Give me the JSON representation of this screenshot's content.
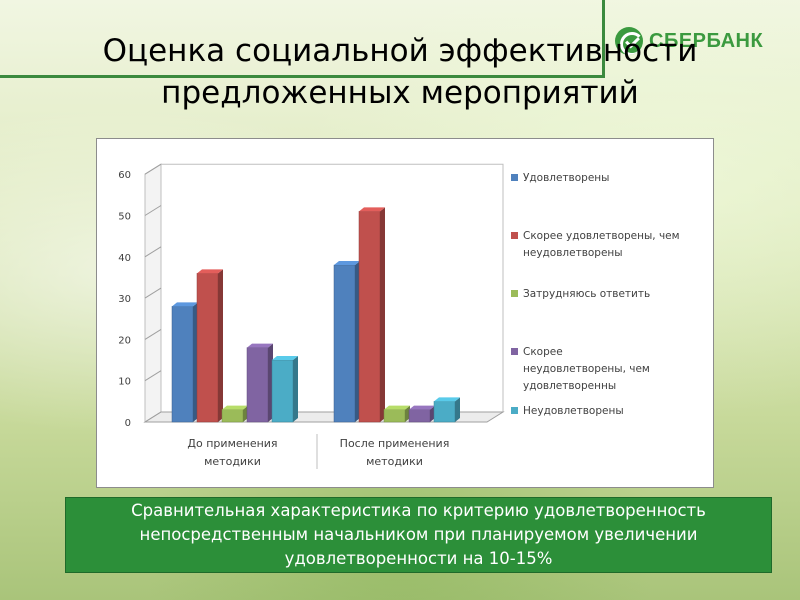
{
  "slide": {
    "title_line1": "Оценка социальной эффективности",
    "title_line2": "предложенных мероприятий",
    "logo_text": "СБЕРБАНК",
    "caption": "Сравнительная характеристика по критерию удовлетворенность непосредственным начальником при планируемом увеличении удовлетворенности на 10-15%"
  },
  "colors": {
    "accent_green": "#3b9a3f",
    "caption_bg": "#2c8f39"
  },
  "chart_data": {
    "type": "bar",
    "three_d": true,
    "categories": [
      "До применения методики",
      "После применения методики"
    ],
    "category_lines": [
      [
        "До применения",
        "методики"
      ],
      [
        "После применения",
        "методики"
      ]
    ],
    "series": [
      {
        "name": "Удовлетворены",
        "values": [
          28,
          38
        ],
        "color": "#4f81bd"
      },
      {
        "name": "Скорее удовлетворены, чем неудовлетворены",
        "values": [
          36,
          51
        ],
        "color": "#c0504d"
      },
      {
        "name": "Затрудняюсь ответить",
        "values": [
          3,
          3
        ],
        "color": "#9bbb59"
      },
      {
        "name": "Скорее неудовлетворены, чем удовлетворенны",
        "values": [
          18,
          3
        ],
        "color": "#8064a2"
      },
      {
        "name": "Неудовлетворены",
        "values": [
          15,
          5
        ],
        "color": "#4bacc6"
      }
    ],
    "legend_lines": [
      [
        "Удовлетворены"
      ],
      [
        "Скорее удовлетворены, чем",
        "неудовлетворены"
      ],
      [
        "Затрудняюсь ответить"
      ],
      [
        "Скорее",
        "неудовлетворены, чем",
        "удовлетворенны"
      ],
      [
        "Неудовлетворены"
      ]
    ],
    "y_ticks": [
      "0",
      "10",
      "20",
      "30",
      "40",
      "50",
      "60"
    ],
    "ylim": [
      0,
      60
    ],
    "grid": false,
    "legend_position": "right"
  }
}
